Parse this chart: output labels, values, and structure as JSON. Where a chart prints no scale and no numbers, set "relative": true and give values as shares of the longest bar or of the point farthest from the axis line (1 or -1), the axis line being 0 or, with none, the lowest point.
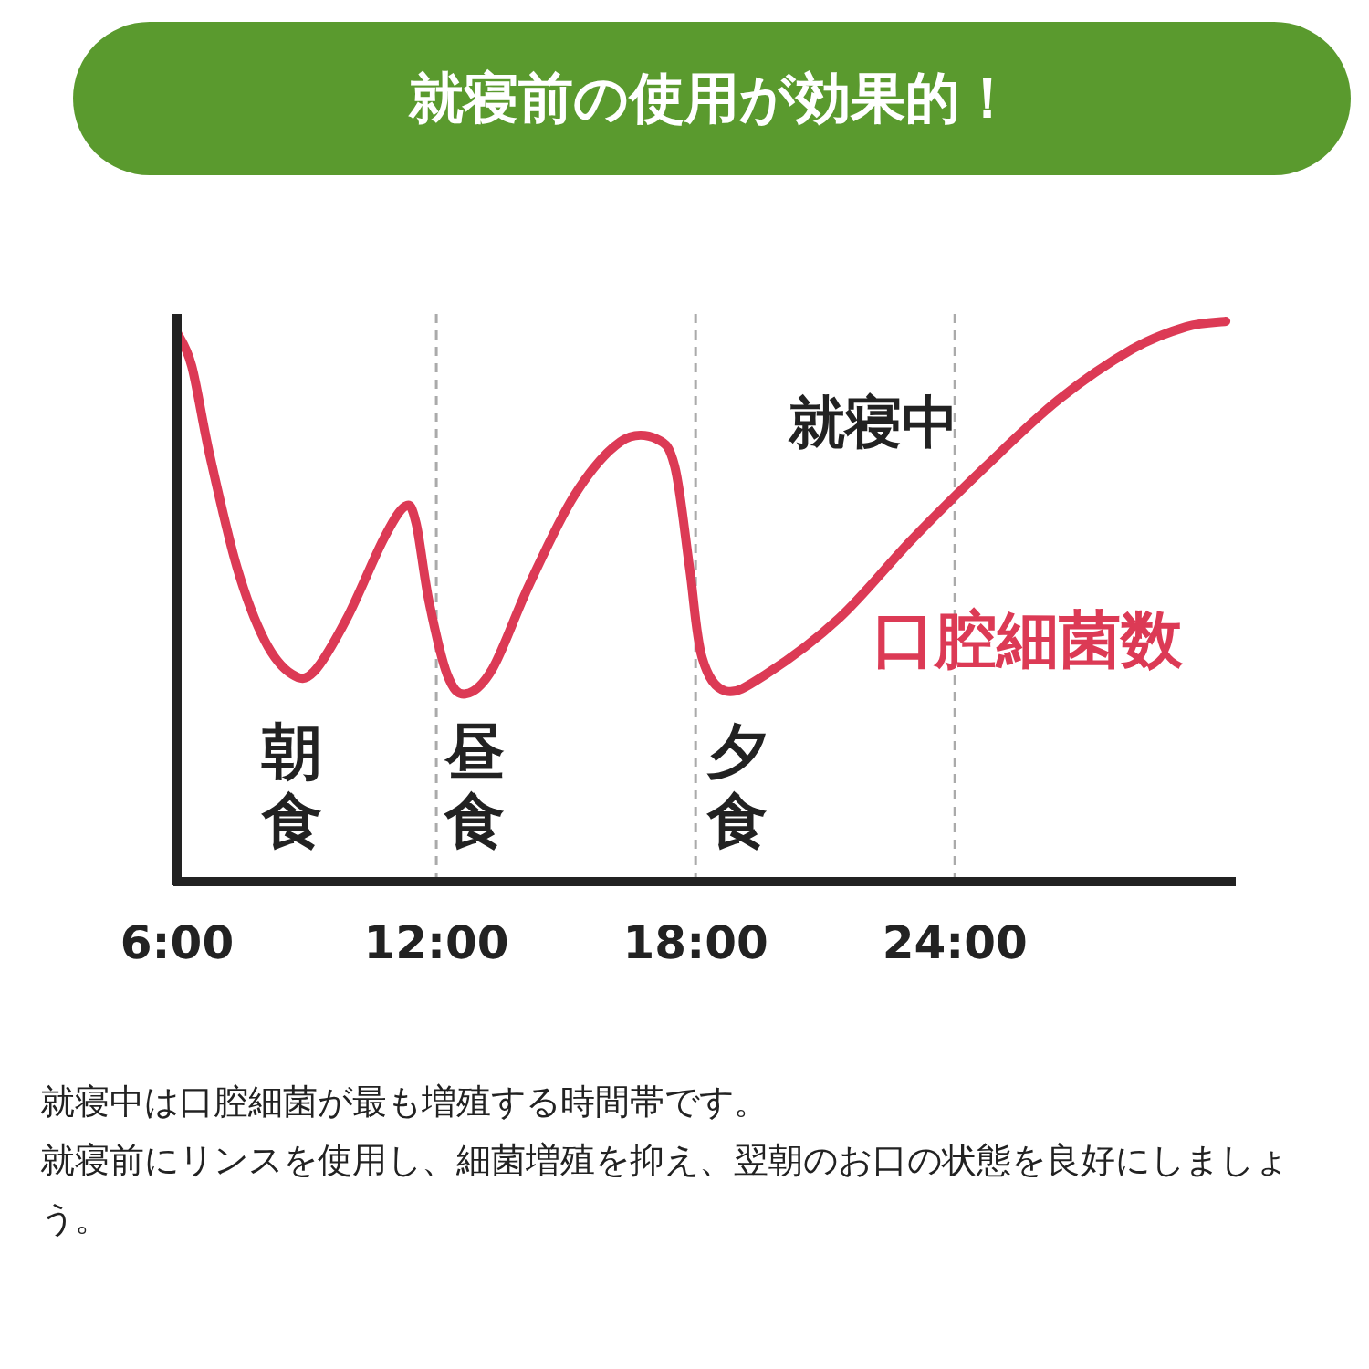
{
  "chart_data": {
    "type": "line",
    "title": "就寝前の使用が効果的！",
    "relative": true,
    "x": [
      6.0,
      6.34,
      6.76,
      7.39,
      8.03,
      8.66,
      9.17,
      9.93,
      10.77,
      11.28,
      11.53,
      11.83,
      12.25,
      12.67,
      13.3,
      14.15,
      15.2,
      16.26,
      17.1,
      17.52,
      17.86,
      18.15,
      18.7,
      19.63,
      21.32,
      23.0,
      24.7,
      26.4,
      28.1,
      29.35,
      30.27
    ],
    "series": [
      {
        "name": "口腔細菌数",
        "color": "#dc3a55",
        "values": [
          0.98,
          0.92,
          0.76,
          0.56,
          0.43,
          0.37,
          0.375,
          0.47,
          0.61,
          0.67,
          0.64,
          0.5,
          0.37,
          0.335,
          0.38,
          0.53,
          0.69,
          0.785,
          0.79,
          0.74,
          0.56,
          0.4,
          0.34,
          0.37,
          0.47,
          0.61,
          0.74,
          0.86,
          0.95,
          0.99,
          1.0
        ]
      }
    ],
    "xlim": [
      6,
      30.5
    ],
    "xticks": [
      {
        "value": 6,
        "label": "6:00"
      },
      {
        "value": 12,
        "label": "12:00"
      },
      {
        "value": 18,
        "label": "18:00"
      },
      {
        "value": 24,
        "label": "24:00"
      }
    ],
    "grid": "x",
    "legend": false,
    "marker": "none",
    "line_style": "solid",
    "annotations": [
      "朝食",
      "昼食",
      "夕食",
      "就寝中",
      "就寝中は口腔細菌が最も増殖する時間帯です。",
      "就寝前にリンスを使用し、細菌増殖を抑え、翌朝のお口の状態を良好にしましょう。"
    ]
  }
}
